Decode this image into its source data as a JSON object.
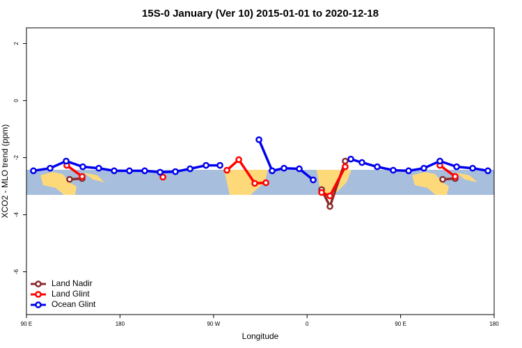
{
  "chart_data": {
    "type": "line",
    "title": "15S-0 January (Ver 10)   2015-01-01 to 2020-12-18",
    "x_label": "Longitude",
    "y_label": "XCO2 - MLO trend (ppm)",
    "xlim": [
      90,
      540
    ],
    "ylim": [
      -7.5,
      2.55
    ],
    "xticks": [
      {
        "value": 90,
        "label": "90 E"
      },
      {
        "value": 180,
        "label": "180"
      },
      {
        "value": 270,
        "label": "90 W"
      },
      {
        "value": 360,
        "label": "0"
      },
      {
        "value": 450,
        "label": "90 E"
      },
      {
        "value": 540,
        "label": "180"
      }
    ],
    "yticks": [
      2,
      0,
      -2,
      -4,
      -6
    ],
    "legend": "bottom-left",
    "series": [
      {
        "name": "Land Nadir",
        "color": "#8b2a2a",
        "x": [
          131.5,
          143.6,
          null,
          374,
          382,
          396.7,
          null,
          490.5,
          502.5
        ],
        "values": [
          -2.76,
          -2.73,
          null,
          -3.12,
          -3.71,
          -2.12,
          null,
          -2.76,
          -2.73
        ]
      },
      {
        "name": "Land Glint",
        "color": "#ff0000",
        "x": [
          128.8,
          143.6,
          null,
          221.3,
          null,
          282.9,
          294.3,
          309.7,
          320.4,
          null,
          374,
          382,
          396.7,
          null,
          487.8,
          502.5
        ],
        "values": [
          -2.27,
          -2.66,
          null,
          -2.68,
          null,
          -2.44,
          -2.07,
          -2.9,
          -2.88,
          null,
          -3.22,
          -3.34,
          -2.32,
          null,
          -2.27,
          -2.66
        ]
      },
      {
        "name": "Ocean Glint",
        "color": "#0000ee",
        "x": [
          96.7,
          112.8,
          128.2,
          144.2,
          159.6,
          174.4,
          189.1,
          203.8,
          218.6,
          233.3,
          247.4,
          262.8,
          276.2,
          null,
          313.7,
          326.4,
          337.8,
          352.5,
          365.9,
          null,
          402.1,
          412.8,
          427.5,
          442.9,
          457.7,
          472.4,
          487.8,
          503.9,
          519.3,
          534
        ],
        "values": [
          -2.46,
          -2.37,
          -2.12,
          -2.32,
          -2.37,
          -2.46,
          -2.46,
          -2.46,
          -2.51,
          -2.49,
          -2.39,
          -2.27,
          -2.27,
          null,
          -1.37,
          -2.46,
          -2.37,
          -2.39,
          -2.78,
          null,
          -2.05,
          -2.17,
          -2.32,
          -2.44,
          -2.46,
          -2.37,
          -2.12,
          -2.32,
          -2.37,
          -2.46
        ]
      }
    ]
  }
}
